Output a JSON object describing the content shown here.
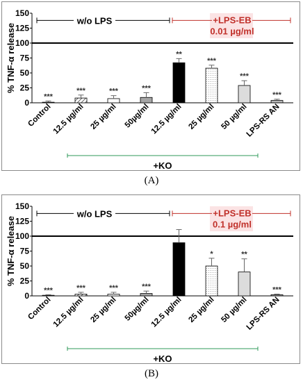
{
  "chart_data": [
    {
      "id": "A",
      "type": "bar",
      "panel_label": "(A)",
      "ylabel": "% TNF-α release",
      "ylim": [
        0,
        150
      ],
      "yticks": [
        "0",
        "25",
        "50",
        "75",
        "100",
        "125",
        "150"
      ],
      "reference_line": 100,
      "categories": [
        "Control",
        "12.5 µg/ml",
        "25 µg/ml",
        "50µg/ml",
        "12.5 µg/ml",
        "25 µg/ml",
        "50 µg/ml",
        "LPS-RS AN"
      ],
      "values": [
        1,
        8,
        7,
        9,
        67,
        58,
        29,
        4
      ],
      "errors": [
        2,
        5,
        5,
        8,
        7,
        5,
        8,
        2
      ],
      "significance": [
        "***",
        "***",
        "***",
        "***",
        "**",
        "***",
        "***",
        "***"
      ],
      "fills": [
        "white",
        "hatch",
        "white",
        "gray",
        "black",
        "dots",
        "lightgray",
        "darkdots"
      ],
      "annotations": {
        "wo_lps": "w/o LPS",
        "lps_eb": "+LPS-EB",
        "lps_conc": "0.01 µg/ml",
        "ko": "+KO"
      },
      "colors": {
        "lps_text": "#c0302a",
        "lps_bg": "#fbe3e4",
        "ko_line": "#2f9a5a",
        "arrow_red": "#c0302a"
      }
    },
    {
      "id": "B",
      "type": "bar",
      "panel_label": "(B)",
      "ylabel": "% TNF-α release",
      "ylim": [
        0,
        150
      ],
      "yticks": [
        "0",
        "25",
        "50",
        "75",
        "100",
        "125",
        "150"
      ],
      "reference_line": 100,
      "categories": [
        "Control",
        "12.5 µg/ml",
        "25 µg/ml",
        "50µg/ml",
        "12.5 µg/ml",
        "25 µg/ml",
        "50 µg/ml",
        "LPS-RS AN"
      ],
      "values": [
        1,
        3,
        3,
        4,
        89,
        50,
        40,
        2
      ],
      "errors": [
        1,
        3,
        3,
        4,
        22,
        13,
        22,
        1
      ],
      "significance": [
        "***",
        "***",
        "***",
        "***",
        "",
        "*",
        "**",
        "***"
      ],
      "fills": [
        "white",
        "hatch",
        "white",
        "gray",
        "black",
        "dots",
        "lightgray",
        "darkdots"
      ],
      "annotations": {
        "wo_lps": "w/o LPS",
        "lps_eb": "+LPS-EB",
        "lps_conc": "0.1 µg/ml",
        "ko": "+KO"
      },
      "colors": {
        "lps_text": "#c0302a",
        "lps_bg": "#fbe3e4",
        "ko_line": "#2f9a5a",
        "arrow_red": "#c0302a"
      }
    }
  ]
}
